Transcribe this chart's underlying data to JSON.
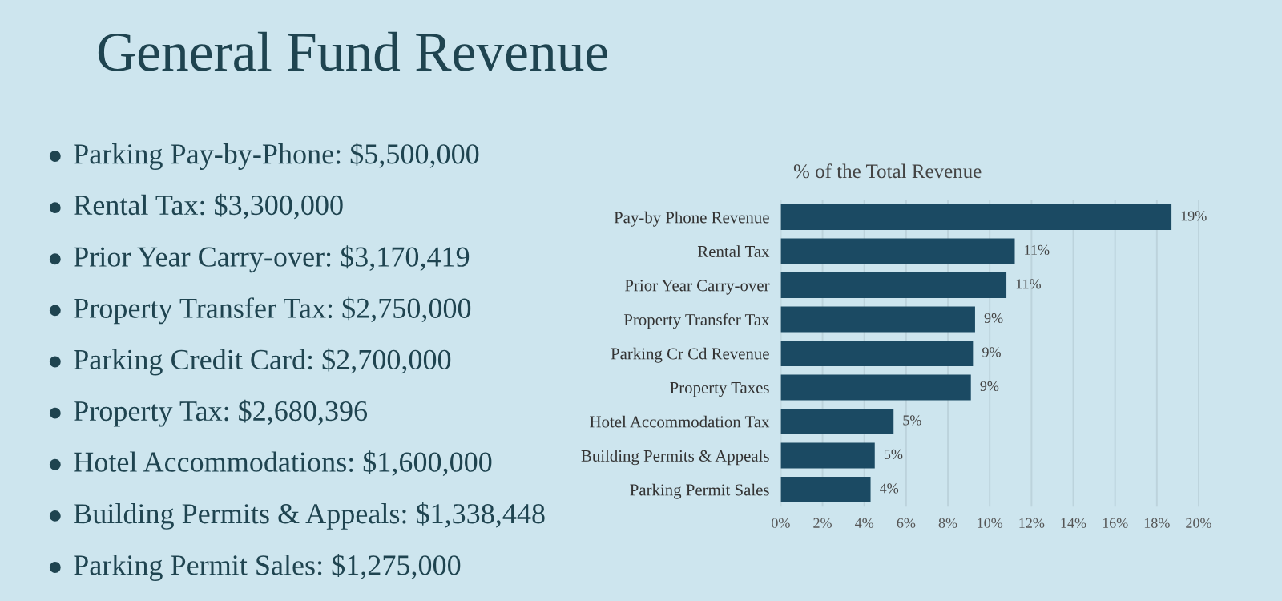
{
  "chart_data": {
    "type": "bar",
    "orientation": "horizontal",
    "title": "General Fund Revenue",
    "subtitle": "% of the Total Revenue",
    "categories": [
      "Pay-by Phone Revenue",
      "Rental Tax",
      "Prior Year Carry-over",
      "Property Transfer Tax",
      "Parking Cr Cd Revenue",
      "Property Taxes",
      "Hotel Accommodation Tax",
      "Building Permits & Appeals",
      "Parking Permit Sales"
    ],
    "values": [
      18.7,
      11.2,
      10.8,
      9.3,
      9.2,
      9.1,
      5.4,
      4.5,
      4.3
    ],
    "value_labels": [
      "19%",
      "11%",
      "11%",
      "9%",
      "9%",
      "9%",
      "5%",
      "5%",
      "4%"
    ],
    "color": "#1b4a63",
    "xlim": [
      0,
      20
    ],
    "xticks": [
      {
        "value": 0,
        "label": "0%"
      },
      {
        "value": 2,
        "label": "2%"
      },
      {
        "value": 4,
        "label": "4%"
      },
      {
        "value": 6,
        "label": "6%"
      },
      {
        "value": 8,
        "label": "8%"
      },
      {
        "value": 10,
        "label": "10%"
      },
      {
        "value": 12,
        "label": "12%"
      },
      {
        "value": 14,
        "label": "14%"
      },
      {
        "value": 16,
        "label": "16%"
      },
      {
        "value": 18,
        "label": "18%"
      },
      {
        "value": 20,
        "label": "20%"
      }
    ],
    "grid": "x",
    "annotations": [
      "Parking Pay-by-Phone: $5,500,000",
      "Rental Tax: $3,300,000",
      "Prior Year Carry-over: $3,170,419",
      "Property Transfer Tax: $2,750,000",
      "Parking Credit Card: $2,700,000",
      "Property Tax: $2,680,396",
      "Hotel Accommodations: $1,600,000",
      "Building Permits & Appeals: $1,338,448",
      "Parking Permit Sales: $1,275,000"
    ]
  }
}
